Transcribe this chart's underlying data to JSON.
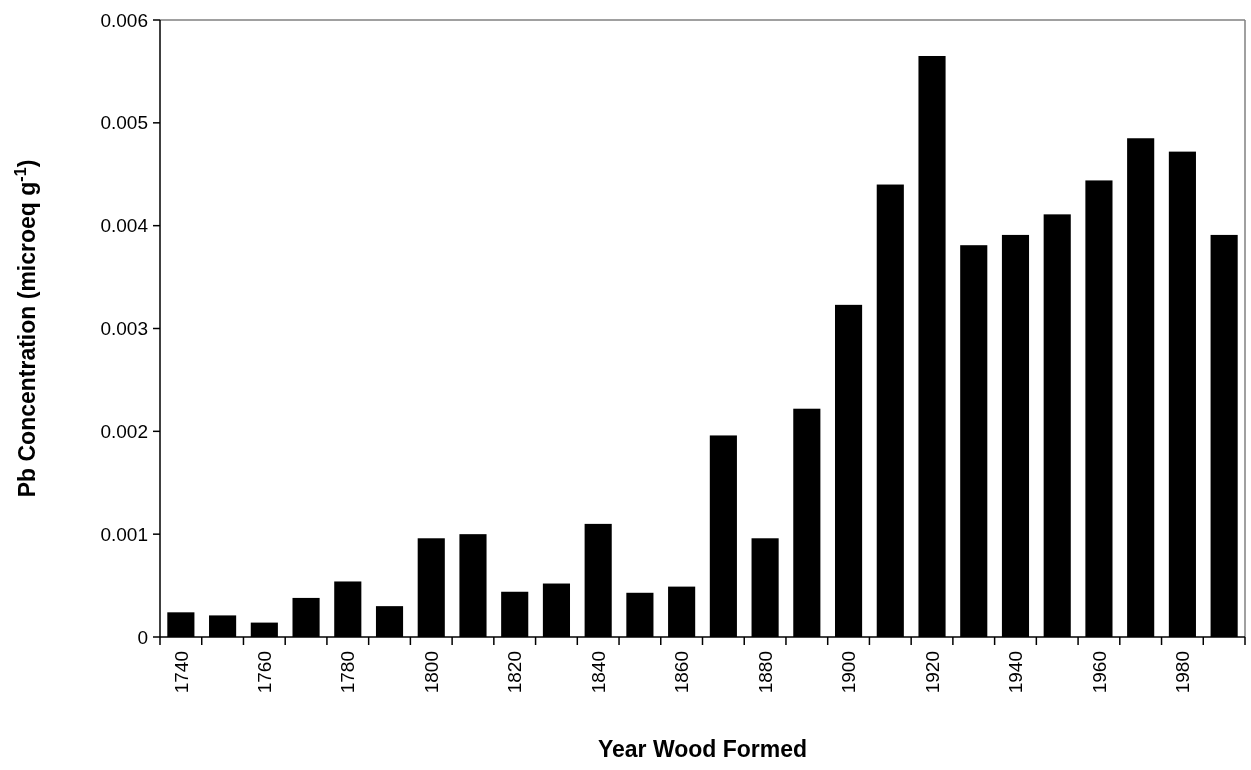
{
  "chart_data": {
    "type": "bar",
    "xlabel": "Year Wood Formed",
    "ylabel": "Pb Concentration (microeq g$^{-1}$)",
    "categories": [
      "1740",
      null,
      "1760",
      null,
      "1780",
      null,
      "1800",
      null,
      "1820",
      null,
      "1840",
      null,
      "1860",
      null,
      "1880",
      null,
      "1900",
      null,
      "1920",
      null,
      "1940",
      null,
      "1960",
      null,
      "1980",
      null
    ],
    "values": [
      0.00024,
      0.00021,
      0.00014,
      0.00038,
      0.00054,
      0.0003,
      0.00096,
      0.001,
      0.00044,
      0.00052,
      0.0011,
      0.00043,
      0.00049,
      0.00196,
      0.00096,
      0.00222,
      0.00323,
      0.0044,
      0.00565,
      0.00381,
      0.00391,
      0.00411,
      0.00444,
      0.00485,
      0.00472,
      0.00391
    ],
    "color": "#000000",
    "ylim": [
      0,
      0.006
    ],
    "yticks": [
      {
        "value": 0,
        "label": "0"
      },
      0.001,
      0.002,
      0.003,
      0.004,
      0.005,
      0.006
    ],
    "grid": false
  }
}
